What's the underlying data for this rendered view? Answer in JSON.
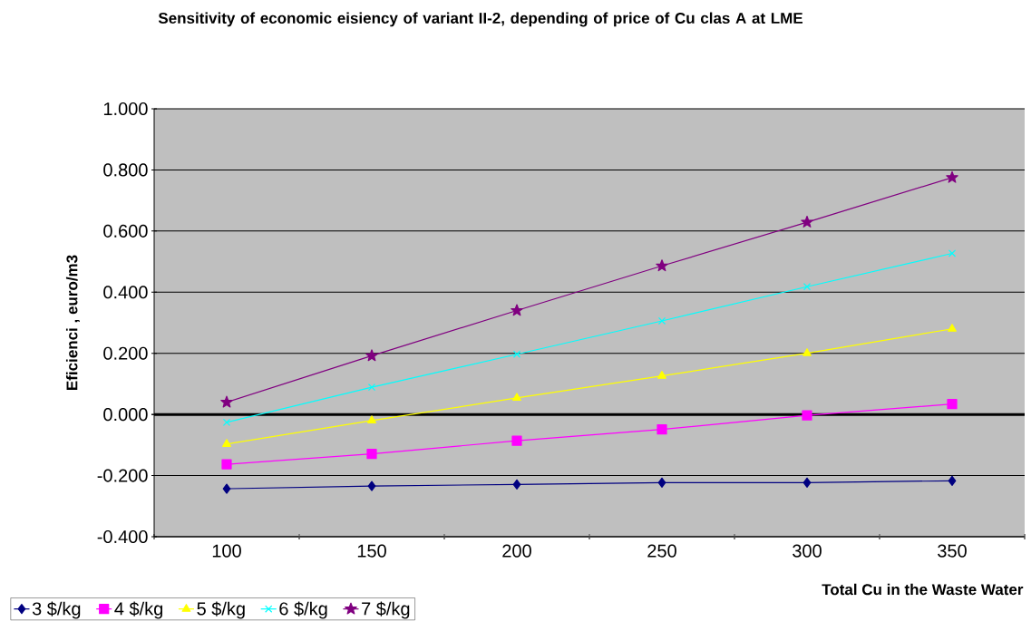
{
  "chart_data": {
    "type": "line",
    "title": "Sensitivity of economic eisiency of variant II-2, depending of price of Cu clas A at LME",
    "xlabel": "Total Cu in the Waste Water",
    "ylabel": "Eficienci , euro/m3",
    "categories": [
      "100",
      "150",
      "200",
      "250",
      "300",
      "350"
    ],
    "series": [
      {
        "name": "3 $/kg",
        "color": "#000080",
        "marker": "diamond",
        "values": [
          -0.243,
          -0.234,
          -0.229,
          -0.223,
          -0.223,
          -0.217
        ]
      },
      {
        "name": "4 $/kg",
        "color": "#ff00ff",
        "marker": "square",
        "values": [
          -0.163,
          -0.129,
          -0.086,
          -0.049,
          -0.003,
          0.034
        ]
      },
      {
        "name": "5 $/kg",
        "color": "#ffff00",
        "marker": "triangle",
        "values": [
          -0.097,
          -0.02,
          0.054,
          0.126,
          0.2,
          0.28
        ]
      },
      {
        "name": "6 $/kg",
        "color": "#00ffff",
        "marker": "cross",
        "values": [
          -0.026,
          0.089,
          0.197,
          0.306,
          0.418,
          0.527
        ]
      },
      {
        "name": "7 $/kg",
        "color": "#800080",
        "marker": "star",
        "values": [
          0.04,
          0.192,
          0.34,
          0.486,
          0.629,
          0.775
        ]
      }
    ],
    "ylim": [
      -0.4,
      1.0
    ],
    "yticks": [
      {
        "value": -0.4,
        "label": "-0.400"
      },
      {
        "value": -0.2,
        "label": "-0.200"
      },
      {
        "value": 0,
        "label": "0.000"
      },
      {
        "value": 0.2,
        "label": "0.200"
      },
      {
        "value": 0.4,
        "label": "0.400"
      },
      {
        "value": 0.6,
        "label": "0.600"
      },
      {
        "value": 0.8,
        "label": "0.800"
      },
      {
        "value": 1.0,
        "label": "1.000"
      }
    ],
    "grid": "y",
    "legend": "bottom",
    "line_style": "solid"
  }
}
